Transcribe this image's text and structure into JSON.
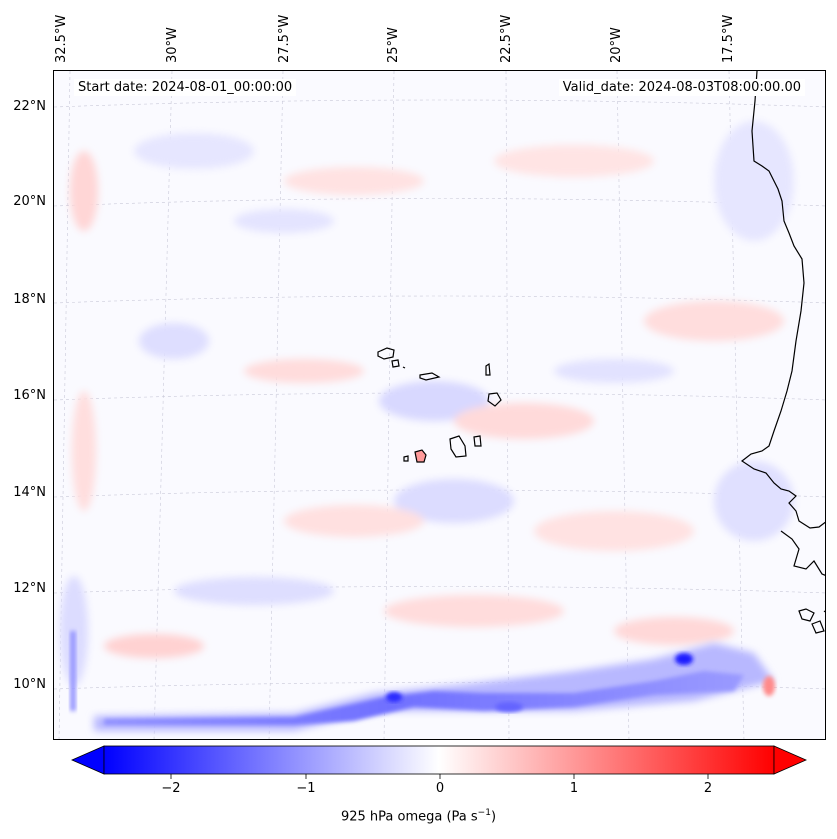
{
  "map": {
    "start_date_label": "Start date: 2024-08-01_00:00:00",
    "valid_date_label": "Valid_date: 2024-08-03T08:00:00.00",
    "lon_labels": [
      "32.5°W",
      "30°W",
      "27.5°W",
      "25°W",
      "22.5°W",
      "20°W",
      "17.5°W"
    ],
    "lat_labels": [
      "22°N",
      "20°N",
      "18°N",
      "16°N",
      "14°N",
      "12°N",
      "10°N"
    ],
    "field": "925 hPa omega",
    "region": "Cape Verde / West Africa coast"
  },
  "colorbar": {
    "label": "925 hPa omega (Pa s",
    "label_exponent": "−1",
    "label_close": ")",
    "ticks": [
      "−2",
      "−1",
      "0",
      "1",
      "2"
    ],
    "min_color": "#0000ff",
    "mid_color": "#ffffff",
    "max_color": "#ff0000"
  }
}
